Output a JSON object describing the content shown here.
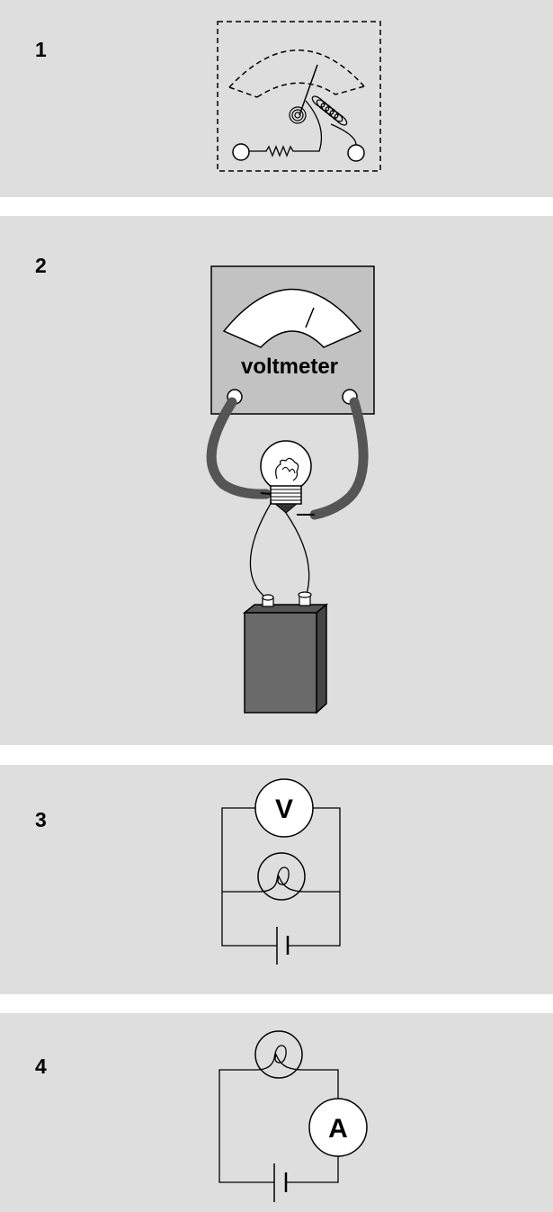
{
  "panels": [
    {
      "number": "1"
    },
    {
      "number": "2",
      "meter_label": "voltmeter"
    },
    {
      "number": "3",
      "meter_symbol": "V"
    },
    {
      "number": "4",
      "meter_symbol": "A"
    }
  ]
}
